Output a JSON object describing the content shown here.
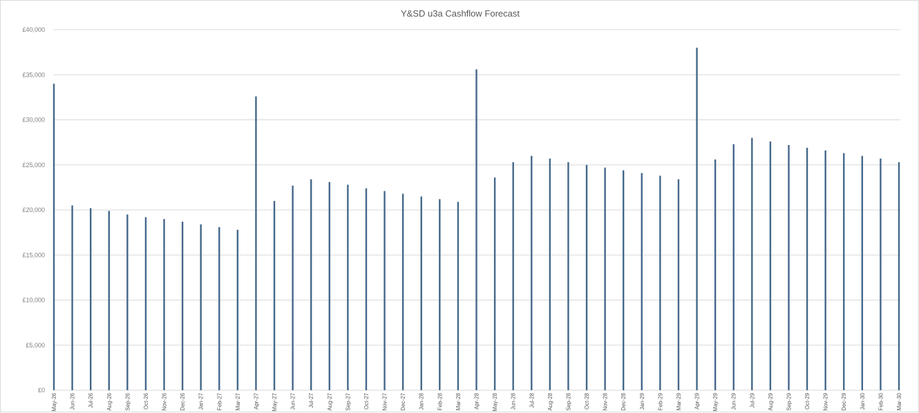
{
  "chart_data": {
    "type": "bar",
    "title": "Y&SD u3a Cashflow Forecast",
    "xlabel": "",
    "ylabel": "",
    "ylim": [
      0,
      40000
    ],
    "yticks": [
      "£0",
      "£5,000",
      "£10,000",
      "£15,000",
      "£20,000",
      "£25,000",
      "£30,000",
      "£35,000",
      "£40,000"
    ],
    "grid": true,
    "legend": "none",
    "bar_color": "#44678a",
    "categories": [
      "May-26",
      "Jun-26",
      "Jul-26",
      "Aug-26",
      "Sep-26",
      "Oct-26",
      "Nov-26",
      "Dec-26",
      "Jan-27",
      "Feb-27",
      "Mar-27",
      "Apr-27",
      "May-27",
      "Jun-27",
      "Jul-27",
      "Aug-27",
      "Sep-27",
      "Oct-27",
      "Nov-27",
      "Dec-27",
      "Jan-28",
      "Feb-28",
      "Mar-28",
      "Apr-28",
      "May-28",
      "Jun-28",
      "Jul-28",
      "Aug-28",
      "Sep-28",
      "Oct-28",
      "Nov-28",
      "Dec-28",
      "Jan-29",
      "Feb-29",
      "Mar-29",
      "Apr-29",
      "May-29",
      "Jun-29",
      "Jul-29",
      "Aug-29",
      "Sep-29",
      "Oct-29",
      "Nov-29",
      "Dec-29",
      "Jan-30",
      "Feb-30",
      "Mar-30"
    ],
    "values": [
      34000,
      20500,
      20200,
      19900,
      19500,
      19200,
      19000,
      18700,
      18400,
      18100,
      17800,
      32600,
      21000,
      22700,
      23400,
      23100,
      22800,
      22400,
      22100,
      21800,
      21500,
      21200,
      20900,
      35600,
      23600,
      25300,
      26000,
      25700,
      25300,
      25000,
      24700,
      24400,
      24100,
      23800,
      23400,
      38000,
      25600,
      27300,
      28000,
      27600,
      27200,
      26900,
      26600,
      26300,
      26000,
      25700,
      25300
    ]
  }
}
